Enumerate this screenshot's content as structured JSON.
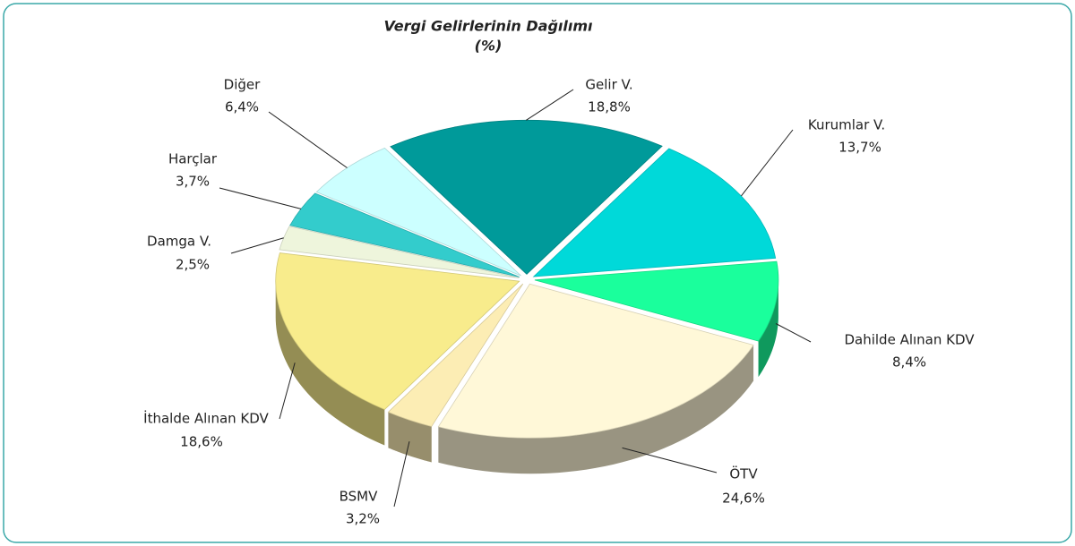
{
  "chart_data": {
    "type": "pie",
    "title": "Vergi Gelirlerinin Dağılımı",
    "subtitle": "(%)",
    "categories": [
      "Gelir V.",
      "Kurumlar V.",
      "Dahilde Alınan KDV",
      "ÖTV",
      "BSMV",
      "İthalde Alınan KDV",
      "Damga V.",
      "Harçlar",
      "Diğer"
    ],
    "values": [
      18.8,
      13.7,
      8.4,
      24.6,
      3.2,
      18.6,
      2.5,
      3.7,
      6.4
    ],
    "value_labels": [
      "18,8%",
      "13,7%",
      "8,4%",
      "24,6%",
      "3,2%",
      "18,6%",
      "2,5%",
      "3,7%",
      "6,4%"
    ],
    "colors": [
      "#009a9a",
      "#00d9d9",
      "#1aff9c",
      "#fff8d8",
      "#fcedb4",
      "#f8ec8c",
      "#eef5dc",
      "#33cccc",
      "#ccffff"
    ]
  }
}
